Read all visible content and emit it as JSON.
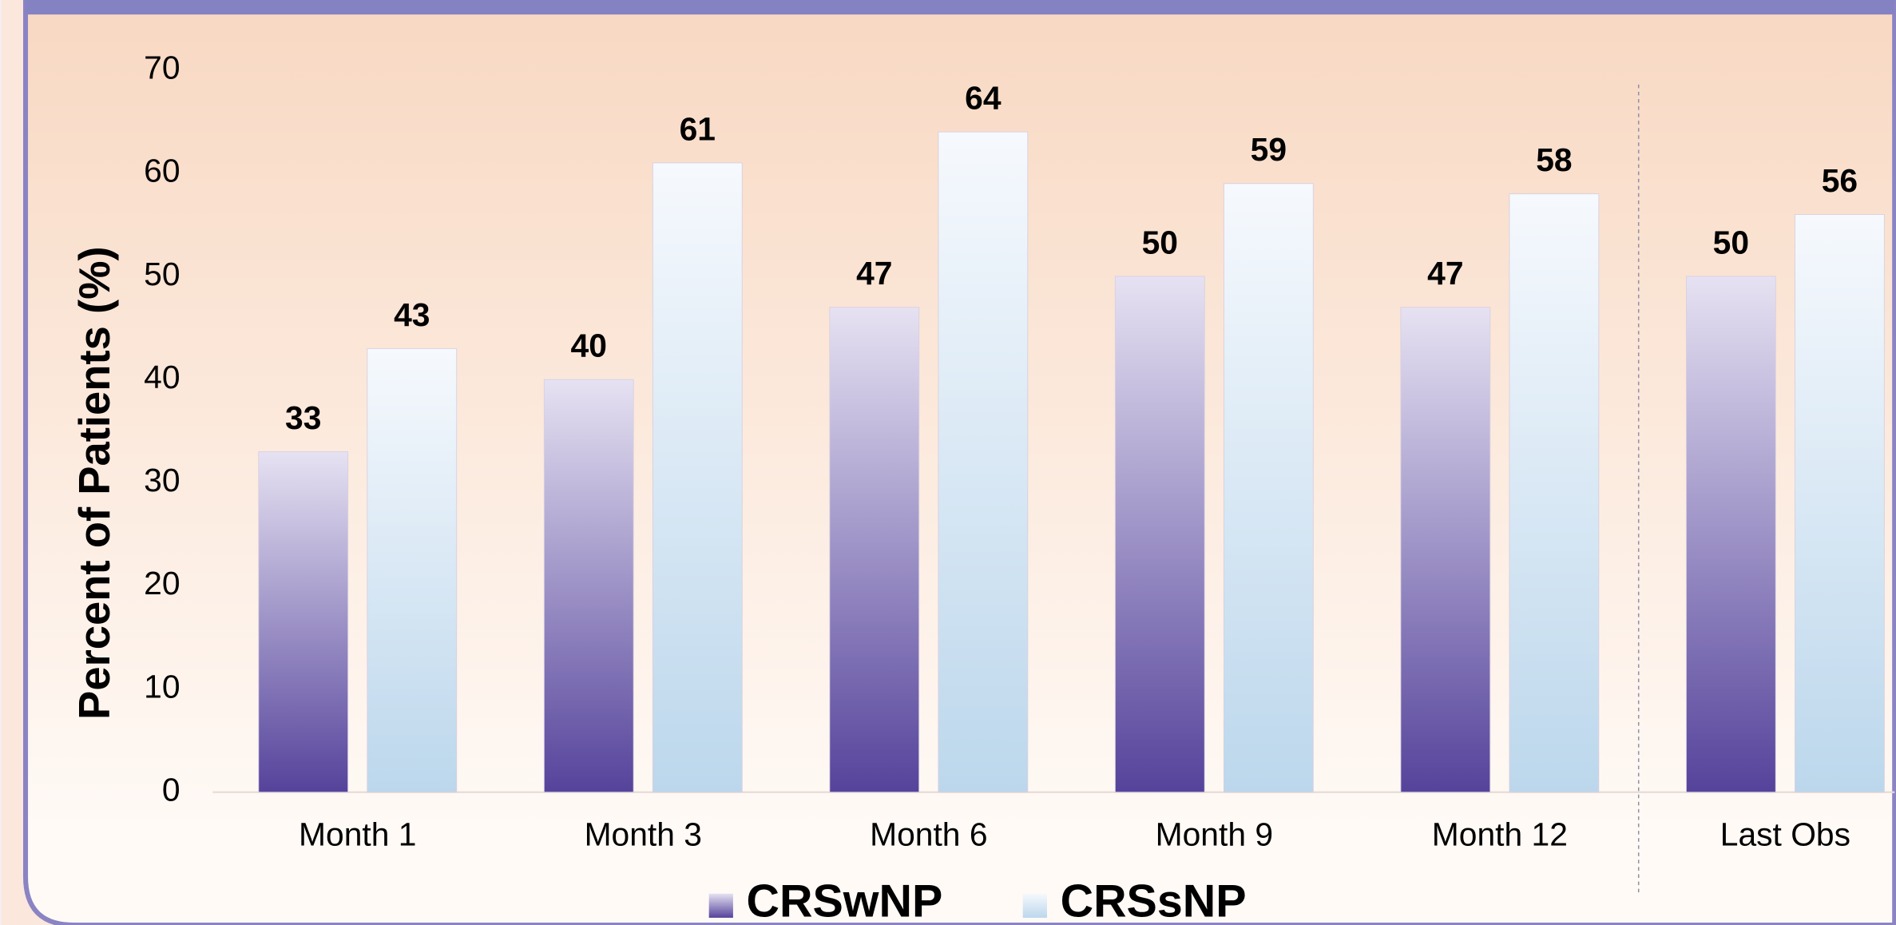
{
  "chart_data": {
    "type": "bar",
    "y_label": "Percent of Patients (%)",
    "categories": [
      "Month 1",
      "Month 3",
      "Month 6",
      "Month 9",
      "Month 12",
      "Last Obs"
    ],
    "series": [
      {
        "name": "CRSwNP",
        "color": "#55439b",
        "values": [
          33,
          40,
          47,
          50,
          47,
          50
        ]
      },
      {
        "name": "CRSsNP",
        "color": "#bcd7ec",
        "values": [
          43,
          61,
          64,
          59,
          58,
          56
        ]
      }
    ],
    "ylim": [
      0,
      70
    ],
    "yticks": [
      0,
      10,
      20,
      30,
      40,
      50,
      60,
      70
    ],
    "grid": false,
    "legend": "bottom"
  }
}
